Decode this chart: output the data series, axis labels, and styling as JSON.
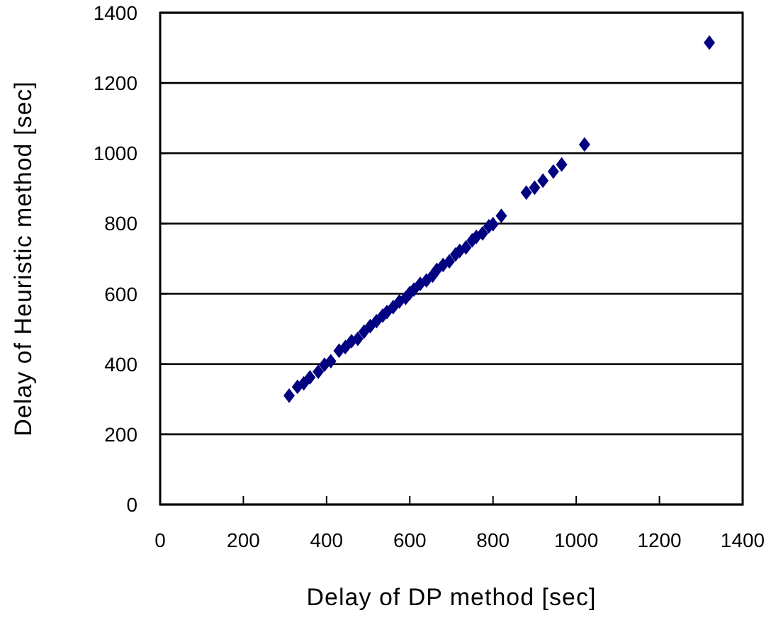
{
  "chart_data": {
    "type": "scatter",
    "xlabel": "Delay of DP method [sec]",
    "ylabel": "Delay of Heuristic method [sec]",
    "xlim": [
      0,
      1400
    ],
    "ylim": [
      0,
      1400
    ],
    "xticks": [
      0,
      200,
      400,
      600,
      800,
      1000,
      1200,
      1400
    ],
    "yticks": [
      0,
      200,
      400,
      600,
      800,
      1000,
      1200,
      1400
    ],
    "grid": "y",
    "marker": "diamond",
    "series": [
      {
        "color": "#000080",
        "x": [
          310,
          330,
          345,
          360,
          380,
          395,
          410,
          430,
          445,
          460,
          475,
          490,
          505,
          520,
          535,
          545,
          560,
          575,
          590,
          600,
          610,
          625,
          640,
          655,
          665,
          680,
          695,
          710,
          720,
          735,
          750,
          760,
          775,
          790,
          800,
          820,
          880,
          900,
          920,
          945,
          965,
          1020,
          1320
        ],
        "values": [
          310,
          335,
          345,
          362,
          378,
          398,
          408,
          438,
          448,
          465,
          472,
          492,
          508,
          522,
          538,
          548,
          562,
          578,
          588,
          602,
          612,
          628,
          638,
          652,
          668,
          682,
          692,
          712,
          722,
          732,
          752,
          762,
          772,
          792,
          798,
          822,
          888,
          902,
          922,
          948,
          968,
          1025,
          1315
        ]
      }
    ]
  }
}
